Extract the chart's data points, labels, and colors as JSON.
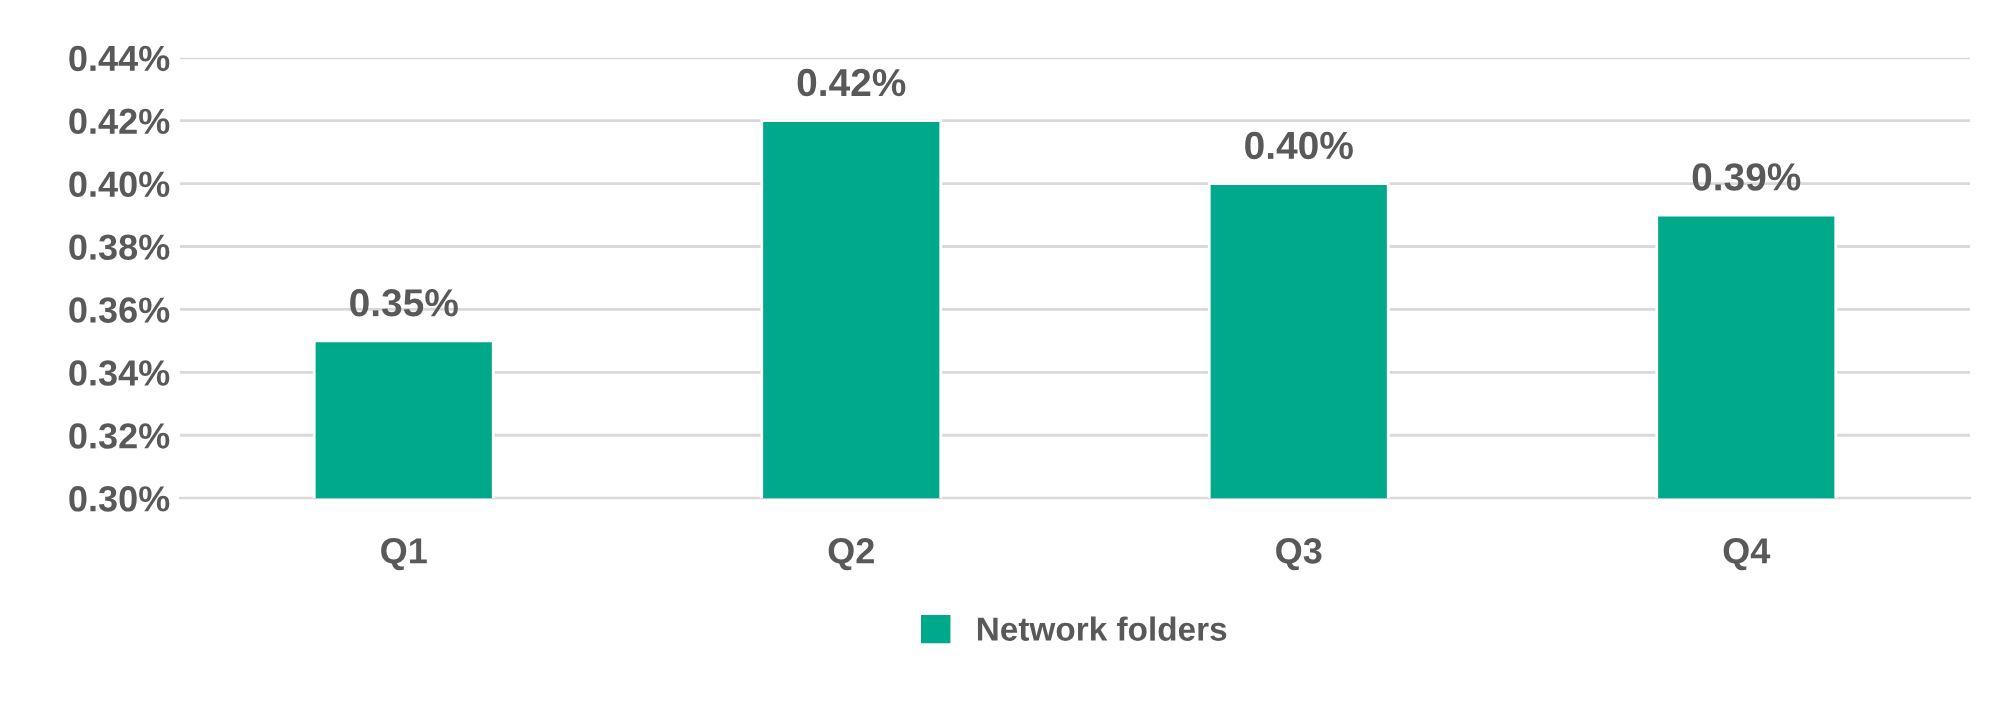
{
  "chart_data": {
    "type": "bar",
    "categories": [
      "Q1",
      "Q2",
      "Q3",
      "Q4"
    ],
    "series": [
      {
        "name": "Network folders",
        "color": "#00a98a",
        "values": [
          0.35,
          0.42,
          0.4,
          0.39
        ],
        "value_labels": [
          "0.35%",
          "0.42%",
          "0.40%",
          "0.39%"
        ]
      }
    ],
    "ylim": [
      0.3,
      0.44
    ],
    "yticks": [
      {
        "value": 0.3,
        "label": "0.30%"
      },
      {
        "value": 0.32,
        "label": "0.32%"
      },
      {
        "value": 0.34,
        "label": "0.34%"
      },
      {
        "value": 0.36,
        "label": "0.36%"
      },
      {
        "value": 0.38,
        "label": "0.38%"
      },
      {
        "value": 0.4,
        "label": "0.40%"
      },
      {
        "value": 0.42,
        "label": "0.42%"
      },
      {
        "value": 0.44,
        "label": "0.44%"
      }
    ],
    "grid": "y",
    "legend": "bottom"
  }
}
